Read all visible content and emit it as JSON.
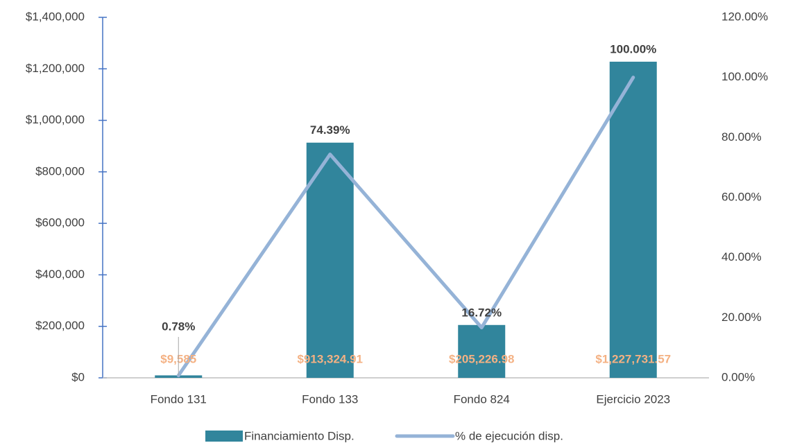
{
  "chart_data": {
    "type": "bar-line",
    "categories": [
      "Fondo 131",
      "Fondo 133",
      "Fondo 824",
      "Ejercicio 2023"
    ],
    "series": [
      {
        "name": "Financiamiento Disp.",
        "color": "#31859c",
        "type": "bar",
        "values": [
          9585,
          913324.91,
          205226.98,
          1227731.57
        ],
        "value_labels": [
          "$9,585",
          "$913,324.91",
          "$205,226.98",
          "$1,227,731.57"
        ],
        "label_color": "#f4b183"
      },
      {
        "name": "% de ejecución disp.",
        "color": "#95b3d7",
        "type": "line",
        "axis": "y2",
        "values": [
          0.78,
          74.39,
          16.72,
          100
        ],
        "value_labels": [
          "0.78%",
          "74.39%",
          "16.72%",
          "100.00%"
        ],
        "label_color": "#404040"
      }
    ],
    "ylim": [
      0,
      1400000
    ],
    "yticks": [
      {
        "value": 0,
        "label": "$0"
      },
      {
        "value": 200000,
        "label": "$200,000"
      },
      {
        "value": 400000,
        "label": "$400,000"
      },
      {
        "value": 600000,
        "label": "$600,000"
      },
      {
        "value": 800000,
        "label": "$800,000"
      },
      {
        "value": 1000000,
        "label": "$1,000,000"
      },
      {
        "value": 1200000,
        "label": "$1,200,000"
      },
      {
        "value": 1400000,
        "label": "$1,400,000"
      }
    ],
    "y2lim": [
      0,
      120
    ],
    "y2ticks": [
      {
        "value": 0,
        "label": "0.00%"
      },
      {
        "value": 20,
        "label": "20.00%"
      },
      {
        "value": 40,
        "label": "40.00%"
      },
      {
        "value": 60,
        "label": "60.00%"
      },
      {
        "value": 80,
        "label": "80.00%"
      },
      {
        "value": 100,
        "label": "100.00%"
      },
      {
        "value": 120,
        "label": "120.00%"
      }
    ],
    "legend": "bottom"
  }
}
